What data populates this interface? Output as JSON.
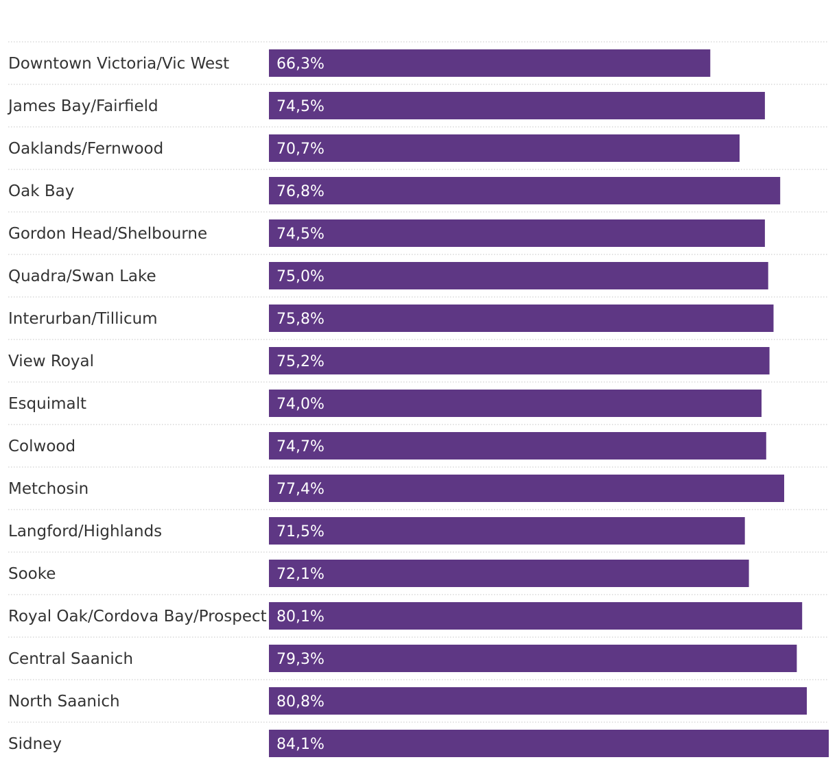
{
  "chart_data": {
    "type": "bar",
    "orientation": "horizontal",
    "title": "",
    "xlabel": "",
    "ylabel": "",
    "xlim": [
      0,
      84.1
    ],
    "bar_color": "#5e3784",
    "separator_color": "#d0d0d0",
    "label_color": "#333333",
    "value_label_color": "#ffffff",
    "categories": [
      "Downtown Victoria/Vic West",
      "James Bay/Fairfield",
      "Oaklands/Fernwood",
      "Oak Bay",
      "Gordon Head/Shelbourne",
      "Quadra/Swan Lake",
      "Interurban/Tillicum",
      "View Royal",
      "Esquimalt",
      "Colwood",
      "Metchosin",
      "Langford/Highlands",
      "Sooke",
      "Royal Oak/Cordova Bay/Prospect",
      "Central Saanich",
      "North Saanich",
      "Sidney"
    ],
    "values": [
      66.3,
      74.5,
      70.7,
      76.8,
      74.5,
      75.0,
      75.8,
      75.2,
      74.0,
      74.7,
      77.4,
      71.5,
      72.1,
      80.1,
      79.3,
      80.8,
      84.1
    ],
    "value_labels": [
      "66,3%",
      "74,5%",
      "70,7%",
      "76,8%",
      "74,5%",
      "75,0%",
      "75,8%",
      "75,2%",
      "74,0%",
      "74,7%",
      "77,4%",
      "71,5%",
      "72,1%",
      "80,1%",
      "79,3%",
      "80,8%",
      "84,1%"
    ]
  }
}
